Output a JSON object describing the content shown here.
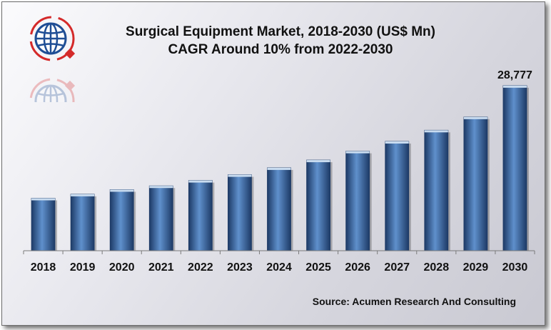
{
  "chart_data": {
    "type": "bar",
    "title": "Surgical Equipment Market, 2018-2030 (US$ Mn)",
    "subtitle": "CAGR Around 10% from 2022-2030",
    "categories": [
      "2018",
      "2019",
      "2020",
      "2021",
      "2022",
      "2023",
      "2024",
      "2025",
      "2026",
      "2027",
      "2028",
      "2029",
      "2030"
    ],
    "values": [
      9150,
      9850,
      10650,
      11300,
      12250,
      13250,
      14450,
      15800,
      17350,
      19050,
      21000,
      23300,
      28777
    ],
    "data_labels": [
      {
        "category": "2030",
        "text": "28,777"
      }
    ],
    "xlabel": "",
    "ylabel": "",
    "ylim": [
      0,
      30000
    ],
    "grid": false,
    "legend": "none",
    "colors": {
      "bar_dark": "#1d3a66",
      "bar_mid": "#3a6aa6",
      "bar_light": "#5f90cc",
      "bar_top": "#c9dcf0"
    }
  },
  "source": "Source: Acumen Research And Consulting",
  "logo": {
    "icon": "globe-icon",
    "colors": {
      "globe": "#1f4e95",
      "ring": "#d42a2a"
    }
  }
}
